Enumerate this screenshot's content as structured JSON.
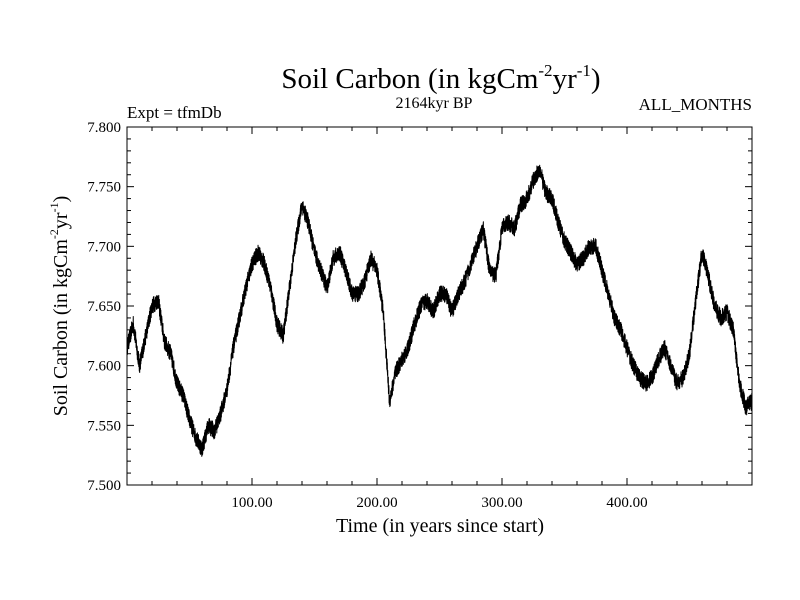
{
  "chart_data": {
    "type": "line",
    "title": {
      "base": "Soil Carbon (in kgCm",
      "sup1": "-2",
      "mid": "yr",
      "sup2": "-1",
      "end": ")"
    },
    "subtitle_left": "Expt = tfmDb",
    "subtitle_center": "2164kyr BP",
    "subtitle_right": "ALL_MONTHS",
    "xlabel": "Time (in years since start)",
    "ylabel": {
      "base": "Soil Carbon (in kgCm",
      "sup1": "-2",
      "mid": "yr",
      "sup2": "-1",
      "end": ")"
    },
    "xlim": [
      0,
      500
    ],
    "ylim": [
      7.5,
      7.8
    ],
    "xticks": [
      100,
      200,
      300,
      400
    ],
    "xtick_labels": [
      "100.00",
      "200.00",
      "300.00",
      "400.00"
    ],
    "yticks": [
      7.5,
      7.55,
      7.6,
      7.65,
      7.7,
      7.75,
      7.8
    ],
    "ytick_labels": [
      "7.500",
      "7.550",
      "7.600",
      "7.650",
      "7.700",
      "7.750",
      "7.800"
    ],
    "series": [
      {
        "name": "Soil Carbon",
        "color": "#000000",
        "noise_amplitude": 0.007,
        "x": [
          0,
          5,
          10,
          15,
          20,
          25,
          30,
          35,
          40,
          45,
          50,
          55,
          60,
          65,
          70,
          75,
          80,
          85,
          90,
          95,
          100,
          105,
          110,
          115,
          120,
          125,
          130,
          135,
          140,
          145,
          150,
          155,
          160,
          165,
          170,
          175,
          180,
          185,
          190,
          195,
          200,
          205,
          210,
          215,
          220,
          225,
          230,
          235,
          240,
          245,
          250,
          255,
          260,
          265,
          270,
          275,
          280,
          285,
          290,
          295,
          300,
          305,
          310,
          315,
          320,
          325,
          330,
          335,
          340,
          345,
          350,
          355,
          360,
          365,
          370,
          375,
          380,
          385,
          390,
          395,
          400,
          405,
          410,
          415,
          420,
          425,
          430,
          435,
          440,
          445,
          450,
          455,
          460,
          465,
          470,
          475,
          480,
          485,
          490,
          495,
          500
        ],
        "values": [
          7.615,
          7.635,
          7.6,
          7.625,
          7.65,
          7.655,
          7.62,
          7.61,
          7.585,
          7.575,
          7.555,
          7.54,
          7.53,
          7.55,
          7.545,
          7.56,
          7.58,
          7.615,
          7.64,
          7.665,
          7.685,
          7.695,
          7.685,
          7.665,
          7.635,
          7.625,
          7.665,
          7.705,
          7.735,
          7.72,
          7.695,
          7.68,
          7.665,
          7.69,
          7.695,
          7.68,
          7.66,
          7.66,
          7.67,
          7.69,
          7.68,
          7.645,
          7.57,
          7.595,
          7.605,
          7.615,
          7.635,
          7.65,
          7.655,
          7.645,
          7.66,
          7.66,
          7.645,
          7.66,
          7.67,
          7.685,
          7.7,
          7.715,
          7.68,
          7.675,
          7.715,
          7.72,
          7.715,
          7.735,
          7.74,
          7.755,
          7.765,
          7.745,
          7.74,
          7.72,
          7.705,
          7.695,
          7.685,
          7.69,
          7.7,
          7.7,
          7.68,
          7.66,
          7.64,
          7.63,
          7.615,
          7.6,
          7.59,
          7.585,
          7.59,
          7.605,
          7.615,
          7.6,
          7.585,
          7.59,
          7.61,
          7.655,
          7.695,
          7.675,
          7.65,
          7.64,
          7.645,
          7.63,
          7.585,
          7.565,
          7.57
        ]
      }
    ]
  }
}
